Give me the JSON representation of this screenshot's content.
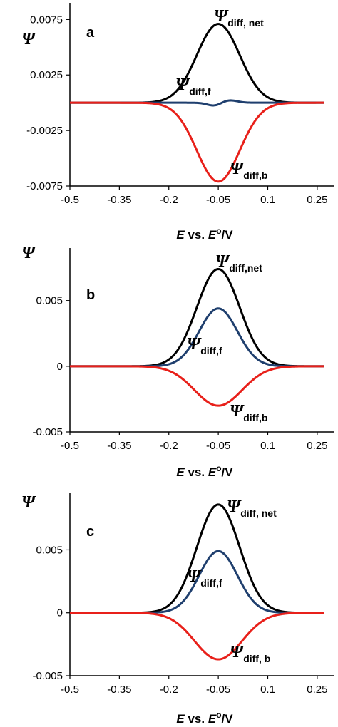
{
  "colors": {
    "net": "#000000",
    "forward": "#1f3f6e",
    "backward": "#e8201a"
  },
  "chart_data": [
    {
      "type": "line",
      "panel_label": "a",
      "ylabel": "Ψ",
      "xlabel": {
        "e1": "E",
        "mid": " vs. ",
        "e2": "E",
        "deg": "o",
        "unit": "/V"
      },
      "xlim": [
        -0.5,
        0.3
      ],
      "ylim": [
        -0.0075,
        0.009
      ],
      "xticks": [
        -0.5,
        -0.35,
        -0.2,
        -0.05,
        0.1,
        0.25
      ],
      "xtick_labels": [
        "-0.5",
        "-0.35",
        "-0.2",
        "-0.05",
        "0.1",
        "0.25"
      ],
      "yticks": [
        0.0075,
        0.0025,
        -0.0025,
        -0.0075
      ],
      "ytick_labels": [
        "0.0075",
        "0.0025",
        "-0.0025",
        "-0.0075"
      ],
      "curve_range": [
        -0.5,
        0.27
      ],
      "series": [
        {
          "key": "net",
          "label_main": "Ψ",
          "label_sub": "diff, net",
          "components": [
            {
              "amp": 0.0071,
              "center": -0.05,
              "sigma": 0.065
            }
          ]
        },
        {
          "key": "forward",
          "label_main": "Ψ",
          "label_sub": "diff,f",
          "components": [
            {
              "amp": -0.0003,
              "center": -0.06,
              "sigma": 0.022
            },
            {
              "amp": 0.00025,
              "center": -0.02,
              "sigma": 0.025
            }
          ]
        },
        {
          "key": "backward",
          "label_main": "Ψ",
          "label_sub": "diff,b",
          "components": [
            {
              "amp": -0.0071,
              "center": -0.05,
              "sigma": 0.065
            }
          ]
        }
      ]
    },
    {
      "type": "line",
      "panel_label": "b",
      "ylabel": "Ψ",
      "xlabel": {
        "e1": "E",
        "mid": " vs. ",
        "e2": "E",
        "deg": "o",
        "unit": "/V"
      },
      "xlim": [
        -0.5,
        0.3
      ],
      "ylim": [
        -0.005,
        0.009
      ],
      "xticks": [
        -0.5,
        -0.35,
        -0.2,
        -0.05,
        0.1,
        0.25
      ],
      "xtick_labels": [
        "-0.5",
        "-0.35",
        "-0.2",
        "-0.05",
        "0.1",
        "0.25"
      ],
      "yticks": [
        0.005,
        0,
        -0.005
      ],
      "ytick_labels": [
        "0.005",
        "0",
        "-0.005"
      ],
      "curve_range": [
        -0.5,
        0.27
      ],
      "series": [
        {
          "key": "net",
          "label_main": "Ψ",
          "label_sub": "diff,net",
          "components": [
            {
              "amp": 0.0074,
              "center": -0.05,
              "sigma": 0.065
            }
          ]
        },
        {
          "key": "forward",
          "label_main": "Ψ",
          "label_sub": "diff,f",
          "components": [
            {
              "amp": 0.0044,
              "center": -0.05,
              "sigma": 0.058
            }
          ]
        },
        {
          "key": "backward",
          "label_main": "Ψ",
          "label_sub": "diff,b",
          "components": [
            {
              "amp": -0.003,
              "center": -0.05,
              "sigma": 0.072
            }
          ]
        }
      ]
    },
    {
      "type": "line",
      "panel_label": "c",
      "ylabel": "Ψ",
      "xlabel": {
        "e1": "E",
        "mid": " vs. ",
        "e2": "E",
        "deg": "o",
        "unit": "/V"
      },
      "xlim": [
        -0.5,
        0.3
      ],
      "ylim": [
        -0.005,
        0.0095
      ],
      "xticks": [
        -0.5,
        -0.35,
        -0.2,
        -0.05,
        0.1,
        0.25
      ],
      "xtick_labels": [
        "-0.5",
        "-0.35",
        "-0.2",
        "-0.05",
        "0.1",
        "0.25"
      ],
      "yticks": [
        0.005,
        0,
        -0.005
      ],
      "ytick_labels": [
        "0.005",
        "0",
        "-0.005"
      ],
      "curve_range": [
        -0.5,
        0.27
      ],
      "series": [
        {
          "key": "net",
          "label_main": "Ψ",
          "label_sub": "diff, net",
          "components": [
            {
              "amp": 0.0086,
              "center": -0.05,
              "sigma": 0.065
            }
          ]
        },
        {
          "key": "forward",
          "label_main": "Ψ",
          "label_sub": "diff,f",
          "components": [
            {
              "amp": 0.0049,
              "center": -0.05,
              "sigma": 0.058
            }
          ]
        },
        {
          "key": "backward",
          "label_main": "Ψ",
          "label_sub": "diff, b",
          "components": [
            {
              "amp": -0.0037,
              "center": -0.05,
              "sigma": 0.072
            }
          ]
        }
      ]
    }
  ]
}
